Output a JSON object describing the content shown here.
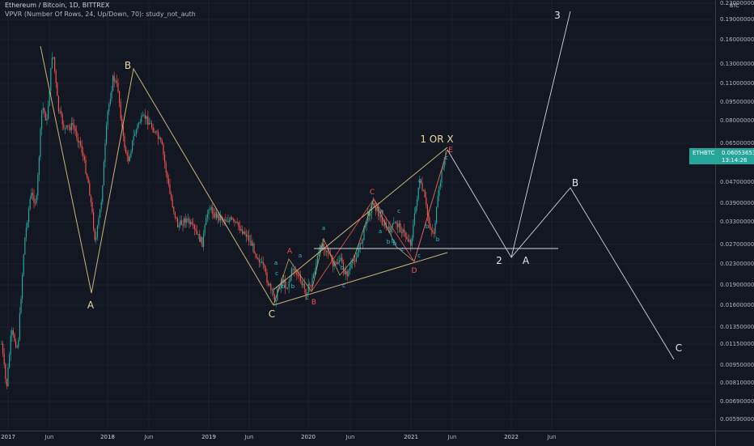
{
  "legend": {
    "title": "Ethereum / Bitcoin, 1D, BITTREX",
    "indicator": "VPVR (Number Of Rows, 24, Up/Down, 70): study_not_auth"
  },
  "price_axis": {
    "currency": "BTC",
    "ticks": [
      "0.23000000",
      "0.19000000",
      "0.16000000",
      "0.13000000",
      "0.11000000",
      "0.09500000",
      "0.08000000",
      "0.06500000",
      "0.04700000",
      "0.03900000",
      "0.03300000",
      "0.02700000",
      "0.02300000",
      "0.01900000",
      "0.01600000",
      "0.01350000",
      "0.01150000",
      "0.00950000",
      "0.00810000",
      "0.00690000",
      "0.00590000"
    ]
  },
  "time_axis": {
    "ticks": [
      {
        "label": "2017",
        "year": true
      },
      {
        "label": "Jun",
        "year": false
      },
      {
        "label": "2018",
        "year": true
      },
      {
        "label": "Jun",
        "year": false
      },
      {
        "label": "2019",
        "year": true
      },
      {
        "label": "Jun",
        "year": false
      },
      {
        "label": "2020",
        "year": true
      },
      {
        "label": "Jun",
        "year": false
      },
      {
        "label": "2021",
        "year": true
      },
      {
        "label": "Jun",
        "year": false
      },
      {
        "label": "2022",
        "year": true
      },
      {
        "label": "Jun",
        "year": false
      }
    ]
  },
  "price_badge": {
    "symbol": "ETHBTC",
    "price": "0.06053653",
    "countdown": "13:14:26",
    "color": "#26a69a"
  },
  "colors": {
    "background": "#131722",
    "up_candle": "#26a69a",
    "down_candle": "#ef5350",
    "main_wave_line": "#c9b37e",
    "minor_wave_line": "#b2a070",
    "projection_line": "#d1d4dc",
    "red_label": "#ef5350",
    "cyan_label": "#26c6da"
  },
  "wave_labels": {
    "main": [
      {
        "text": "A"
      },
      {
        "text": "B"
      },
      {
        "text": "C"
      },
      {
        "text": "1 OR X"
      }
    ],
    "red": [
      {
        "text": "A"
      },
      {
        "text": "B"
      },
      {
        "text": "C"
      },
      {
        "text": "D"
      },
      {
        "text": "E"
      }
    ],
    "projection": [
      {
        "text": "2"
      },
      {
        "text": "A"
      },
      {
        "text": "3"
      },
      {
        "text": "B"
      },
      {
        "text": "C"
      }
    ],
    "small_cyan": [
      "a",
      "b",
      "c",
      "a",
      "b",
      "c",
      "a",
      "b",
      "c",
      "a",
      "b",
      "c",
      "b",
      "c",
      "a",
      "b",
      "a",
      "b",
      "c",
      "b",
      "c"
    ]
  }
}
